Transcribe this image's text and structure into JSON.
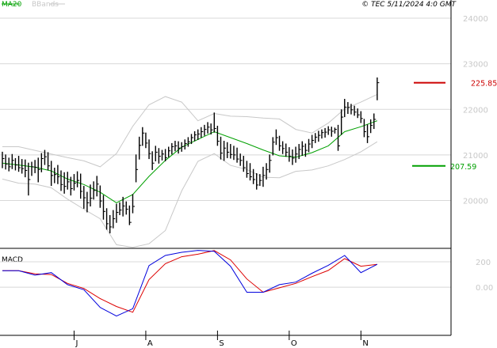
{
  "header": {
    "copyright": "© TEC 5/11/2024 4:0 GMT"
  },
  "chart_data": {
    "type": "line",
    "legend": [
      "MA20",
      "BBands"
    ],
    "colors": {
      "bars": "#000000",
      "ma20": "#00a000",
      "bbands": "#c8c8c8",
      "macd": "#0000dd",
      "signal": "#dd0000",
      "last_price": "#cc0000",
      "support": "#00a000",
      "grid": "#d8d8d8"
    },
    "price_axis": {
      "ticks": [
        200,
        210,
        220,
        230,
        240
      ],
      "labels": [
        "20000",
        "21000",
        "22000",
        "23000",
        "24000"
      ],
      "ylim": [
        189.5,
        244
      ]
    },
    "x_axis": {
      "labels": [
        "J",
        "A",
        "S",
        "O",
        "N"
      ],
      "label_positions": [
        22,
        44,
        66,
        88,
        110
      ],
      "xlim": [
        0,
        125
      ]
    },
    "price_levels": [
      {
        "name": "last",
        "value": 225.85,
        "label": "225.85"
      },
      {
        "name": "support",
        "value": 207.59,
        "label": "207.59"
      }
    ],
    "bars": [
      {
        "x": 0,
        "h": 210.7,
        "l": 207.1,
        "c": 209.2
      },
      {
        "x": 1,
        "h": 210.1,
        "l": 206.8,
        "c": 208.0
      },
      {
        "x": 2,
        "h": 209.4,
        "l": 206.4,
        "c": 207.4
      },
      {
        "x": 3,
        "h": 210.2,
        "l": 206.9,
        "c": 208.8
      },
      {
        "x": 4,
        "h": 209.3,
        "l": 206.6,
        "c": 207.8
      },
      {
        "x": 5,
        "h": 209.8,
        "l": 206.3,
        "c": 207.2
      },
      {
        "x": 6,
        "h": 209.1,
        "l": 205.9,
        "c": 207.0
      },
      {
        "x": 7,
        "h": 209.0,
        "l": 205.1,
        "c": 206.6
      },
      {
        "x": 8,
        "h": 208.3,
        "l": 201.1,
        "c": 204.6
      },
      {
        "x": 9,
        "h": 208.5,
        "l": 205.4,
        "c": 207.4
      },
      {
        "x": 10,
        "h": 208.9,
        "l": 206.0,
        "c": 207.3
      },
      {
        "x": 11,
        "h": 209.4,
        "l": 204.0,
        "c": 206.8
      },
      {
        "x": 12,
        "h": 210.4,
        "l": 206.2,
        "c": 209.2
      },
      {
        "x": 13,
        "h": 211.1,
        "l": 207.8,
        "c": 209.6
      },
      {
        "x": 14,
        "h": 210.6,
        "l": 206.6,
        "c": 207.6
      },
      {
        "x": 15,
        "h": 208.7,
        "l": 203.2,
        "c": 205.5
      },
      {
        "x": 16,
        "h": 207.2,
        "l": 203.8,
        "c": 205.7
      },
      {
        "x": 17,
        "h": 207.8,
        "l": 203.6,
        "c": 205.2
      },
      {
        "x": 18,
        "h": 206.6,
        "l": 202.1,
        "c": 203.5
      },
      {
        "x": 19,
        "h": 206.2,
        "l": 201.5,
        "c": 203.1
      },
      {
        "x": 20,
        "h": 206.3,
        "l": 202.4,
        "c": 204.1
      },
      {
        "x": 21,
        "h": 205.2,
        "l": 201.1,
        "c": 202.6
      },
      {
        "x": 22,
        "h": 205.8,
        "l": 202.2,
        "c": 203.8
      },
      {
        "x": 23,
        "h": 206.4,
        "l": 202.9,
        "c": 204.4
      },
      {
        "x": 24,
        "h": 205.9,
        "l": 200.4,
        "c": 202.0
      },
      {
        "x": 25,
        "h": 203.2,
        "l": 198.2,
        "c": 200.6
      },
      {
        "x": 26,
        "h": 201.9,
        "l": 197.4,
        "c": 199.5
      },
      {
        "x": 27,
        "h": 203.5,
        "l": 198.7,
        "c": 200.5
      },
      {
        "x": 28,
        "h": 204.2,
        "l": 200.2,
        "c": 202.2
      },
      {
        "x": 29,
        "h": 205.4,
        "l": 200.9,
        "c": 203.6
      },
      {
        "x": 30,
        "h": 203.3,
        "l": 198.4,
        "c": 199.9
      },
      {
        "x": 31,
        "h": 201.2,
        "l": 195.8,
        "c": 197.6
      },
      {
        "x": 32,
        "h": 198.3,
        "l": 193.6,
        "c": 194.9
      },
      {
        "x": 33,
        "h": 196.8,
        "l": 192.8,
        "c": 194.2
      },
      {
        "x": 34,
        "h": 197.9,
        "l": 193.9,
        "c": 196.0
      },
      {
        "x": 35,
        "h": 199.3,
        "l": 195.1,
        "c": 197.4
      },
      {
        "x": 36,
        "h": 199.6,
        "l": 196.8,
        "c": 197.9
      },
      {
        "x": 37,
        "h": 200.8,
        "l": 196.5,
        "c": 198.8
      },
      {
        "x": 38,
        "h": 199.8,
        "l": 196.9,
        "c": 198.1
      },
      {
        "x": 39,
        "h": 198.9,
        "l": 194.6,
        "c": 195.2
      },
      {
        "x": 40,
        "h": 201.4,
        "l": 197.2,
        "c": 198.7
      },
      {
        "x": 41,
        "h": 210.1,
        "l": 204.0,
        "c": 206.8
      },
      {
        "x": 42,
        "h": 214.0,
        "l": 209.0,
        "c": 212.1
      },
      {
        "x": 43,
        "h": 216.1,
        "l": 212.0,
        "c": 214.8
      },
      {
        "x": 44,
        "h": 214.9,
        "l": 211.5,
        "c": 212.6
      },
      {
        "x": 45,
        "h": 213.4,
        "l": 209.1,
        "c": 210.3
      },
      {
        "x": 46,
        "h": 210.8,
        "l": 206.7,
        "c": 208.2
      },
      {
        "x": 47,
        "h": 212.0,
        "l": 208.6,
        "c": 210.6
      },
      {
        "x": 48,
        "h": 211.5,
        "l": 208.1,
        "c": 209.7
      },
      {
        "x": 49,
        "h": 211.1,
        "l": 208.8,
        "c": 210.2
      },
      {
        "x": 50,
        "h": 211.3,
        "l": 208.6,
        "c": 209.4
      },
      {
        "x": 51,
        "h": 211.8,
        "l": 209.5,
        "c": 210.9
      },
      {
        "x": 52,
        "h": 212.6,
        "l": 210.1,
        "c": 211.8
      },
      {
        "x": 53,
        "h": 213.1,
        "l": 210.8,
        "c": 212.0
      },
      {
        "x": 54,
        "h": 213.0,
        "l": 210.3,
        "c": 211.5
      },
      {
        "x": 55,
        "h": 212.8,
        "l": 210.7,
        "c": 211.8
      },
      {
        "x": 56,
        "h": 213.4,
        "l": 211.2,
        "c": 212.5
      },
      {
        "x": 57,
        "h": 213.9,
        "l": 211.8,
        "c": 212.9
      },
      {
        "x": 58,
        "h": 214.6,
        "l": 212.4,
        "c": 213.8
      },
      {
        "x": 59,
        "h": 215.2,
        "l": 213.0,
        "c": 214.4
      },
      {
        "x": 60,
        "h": 215.6,
        "l": 213.3,
        "c": 214.6
      },
      {
        "x": 61,
        "h": 216.1,
        "l": 213.8,
        "c": 215.1
      },
      {
        "x": 62,
        "h": 216.6,
        "l": 214.2,
        "c": 215.6
      },
      {
        "x": 63,
        "h": 217.2,
        "l": 214.7,
        "c": 216.1
      },
      {
        "x": 64,
        "h": 216.9,
        "l": 214.5,
        "c": 215.5
      },
      {
        "x": 65,
        "h": 219.3,
        "l": 214.9,
        "c": 215.8
      },
      {
        "x": 66,
        "h": 216.4,
        "l": 212.0,
        "c": 213.0
      },
      {
        "x": 67,
        "h": 214.0,
        "l": 209.0,
        "c": 210.4
      },
      {
        "x": 68,
        "h": 213.1,
        "l": 208.7,
        "c": 211.5
      },
      {
        "x": 69,
        "h": 212.8,
        "l": 209.3,
        "c": 210.6
      },
      {
        "x": 70,
        "h": 212.4,
        "l": 209.2,
        "c": 210.1
      },
      {
        "x": 71,
        "h": 212.0,
        "l": 208.9,
        "c": 210.0
      },
      {
        "x": 72,
        "h": 211.6,
        "l": 208.3,
        "c": 209.1
      },
      {
        "x": 73,
        "h": 210.3,
        "l": 207.6,
        "c": 208.8
      },
      {
        "x": 74,
        "h": 209.8,
        "l": 206.3,
        "c": 207.2
      },
      {
        "x": 75,
        "h": 208.7,
        "l": 205.0,
        "c": 205.9
      },
      {
        "x": 76,
        "h": 208.2,
        "l": 204.4,
        "c": 205.2
      },
      {
        "x": 77,
        "h": 206.9,
        "l": 203.6,
        "c": 204.6
      },
      {
        "x": 78,
        "h": 206.0,
        "l": 202.4,
        "c": 203.4
      },
      {
        "x": 79,
        "h": 205.8,
        "l": 203.2,
        "c": 204.4
      },
      {
        "x": 80,
        "h": 207.4,
        "l": 203.0,
        "c": 205.5
      },
      {
        "x": 81,
        "h": 208.2,
        "l": 204.6,
        "c": 206.8
      },
      {
        "x": 82,
        "h": 210.1,
        "l": 206.1,
        "c": 208.8
      },
      {
        "x": 83,
        "h": 213.9,
        "l": 209.9,
        "c": 212.8
      },
      {
        "x": 84,
        "h": 215.6,
        "l": 212.2,
        "c": 213.8
      },
      {
        "x": 85,
        "h": 214.2,
        "l": 210.9,
        "c": 212.0
      },
      {
        "x": 86,
        "h": 213.0,
        "l": 210.2,
        "c": 211.4
      },
      {
        "x": 87,
        "h": 212.5,
        "l": 209.6,
        "c": 210.6
      },
      {
        "x": 88,
        "h": 211.7,
        "l": 208.5,
        "c": 209.7
      },
      {
        "x": 89,
        "h": 211.2,
        "l": 207.8,
        "c": 209.3
      },
      {
        "x": 90,
        "h": 211.8,
        "l": 208.3,
        "c": 210.2
      },
      {
        "x": 91,
        "h": 212.4,
        "l": 209.1,
        "c": 211.2
      },
      {
        "x": 92,
        "h": 213.0,
        "l": 209.8,
        "c": 211.9
      },
      {
        "x": 93,
        "h": 212.5,
        "l": 209.6,
        "c": 211.0
      },
      {
        "x": 94,
        "h": 213.5,
        "l": 210.6,
        "c": 212.4
      },
      {
        "x": 95,
        "h": 214.4,
        "l": 211.5,
        "c": 213.2
      },
      {
        "x": 96,
        "h": 214.8,
        "l": 212.6,
        "c": 213.9
      },
      {
        "x": 97,
        "h": 215.3,
        "l": 212.9,
        "c": 214.3
      },
      {
        "x": 98,
        "h": 215.6,
        "l": 213.6,
        "c": 214.9
      },
      {
        "x": 99,
        "h": 215.9,
        "l": 213.8,
        "c": 215.0
      },
      {
        "x": 100,
        "h": 216.3,
        "l": 214.4,
        "c": 215.5
      },
      {
        "x": 101,
        "h": 216.2,
        "l": 214.0,
        "c": 215.2
      },
      {
        "x": 102,
        "h": 216.0,
        "l": 214.7,
        "c": 215.6
      },
      {
        "x": 103,
        "h": 216.6,
        "l": 210.9,
        "c": 212.0
      },
      {
        "x": 104,
        "h": 220.0,
        "l": 214.4,
        "c": 218.3
      },
      {
        "x": 105,
        "h": 222.3,
        "l": 218.3,
        "c": 220.5
      },
      {
        "x": 106,
        "h": 221.6,
        "l": 219.0,
        "c": 220.4
      },
      {
        "x": 107,
        "h": 221.2,
        "l": 218.9,
        "c": 219.9
      },
      {
        "x": 108,
        "h": 220.8,
        "l": 218.6,
        "c": 219.4
      },
      {
        "x": 109,
        "h": 220.2,
        "l": 218.1,
        "c": 218.8
      },
      {
        "x": 110,
        "h": 219.6,
        "l": 217.0,
        "c": 218.0
      },
      {
        "x": 111,
        "h": 217.9,
        "l": 213.9,
        "c": 215.1
      },
      {
        "x": 112,
        "h": 216.7,
        "l": 212.6,
        "c": 214.0
      },
      {
        "x": 113,
        "h": 217.8,
        "l": 214.8,
        "c": 216.5
      },
      {
        "x": 114,
        "h": 219.1,
        "l": 215.7,
        "c": 217.8
      },
      {
        "x": 115,
        "h": 227.0,
        "l": 222.0,
        "c": 225.85
      }
    ],
    "ma20": {
      "x": [
        0,
        5,
        10,
        15,
        20,
        25,
        30,
        35,
        40,
        45,
        50,
        55,
        60,
        65,
        70,
        75,
        80,
        85,
        90,
        95,
        100,
        105,
        110,
        115
      ],
      "values": [
        208.2,
        207.8,
        207.3,
        206.5,
        204.7,
        203.5,
        201.8,
        199.5,
        201.3,
        205.3,
        208.8,
        211.7,
        213.4,
        215.1,
        213.8,
        212.5,
        211.1,
        209.8,
        209.5,
        210.5,
        212.0,
        215.1,
        216.2,
        217.5
      ]
    },
    "bbands": {
      "x": [
        0,
        5,
        10,
        15,
        20,
        25,
        30,
        35,
        40,
        45,
        50,
        55,
        60,
        65,
        70,
        75,
        80,
        85,
        90,
        95,
        100,
        105,
        110,
        115
      ],
      "upper": [
        211.8,
        211.8,
        211.0,
        210.2,
        209.4,
        208.7,
        207.4,
        210.3,
        216.3,
        221.0,
        222.8,
        221.6,
        217.5,
        219.1,
        218.5,
        218.4,
        218.1,
        217.9,
        215.6,
        214.8,
        217.0,
        220.1,
        221.6,
        223.3
      ],
      "lower": [
        204.7,
        203.8,
        203.6,
        202.8,
        200.3,
        198.1,
        196.0,
        190.3,
        189.7,
        190.5,
        193.4,
        202.1,
        208.6,
        210.3,
        207.7,
        206.8,
        205.1,
        205.0,
        206.4,
        206.7,
        207.6,
        209.0,
        210.7,
        212.9
      ]
    },
    "macd": {
      "title": "MACD",
      "ticks": [
        0,
        200
      ],
      "labels": [
        "0.00",
        "200"
      ],
      "ylim": [
        -380,
        300
      ],
      "x": [
        0,
        5,
        10,
        15,
        20,
        25,
        30,
        35,
        40,
        45,
        50,
        55,
        60,
        65,
        70,
        75,
        80,
        85,
        90,
        95,
        100,
        105,
        110,
        115
      ],
      "macd_values": [
        130,
        130,
        95,
        115,
        20,
        -20,
        -160,
        -228,
        -170,
        170,
        250,
        275,
        290,
        283,
        165,
        -40,
        -40,
        20,
        40,
        110,
        173,
        250,
        115,
        180
      ],
      "signal_values": [
        130,
        130,
        105,
        100,
        30,
        -10,
        -90,
        -152,
        -198,
        60,
        185,
        240,
        260,
        289,
        215,
        65,
        -40,
        -5,
        30,
        83,
        132,
        225,
        165,
        180
      ]
    }
  }
}
